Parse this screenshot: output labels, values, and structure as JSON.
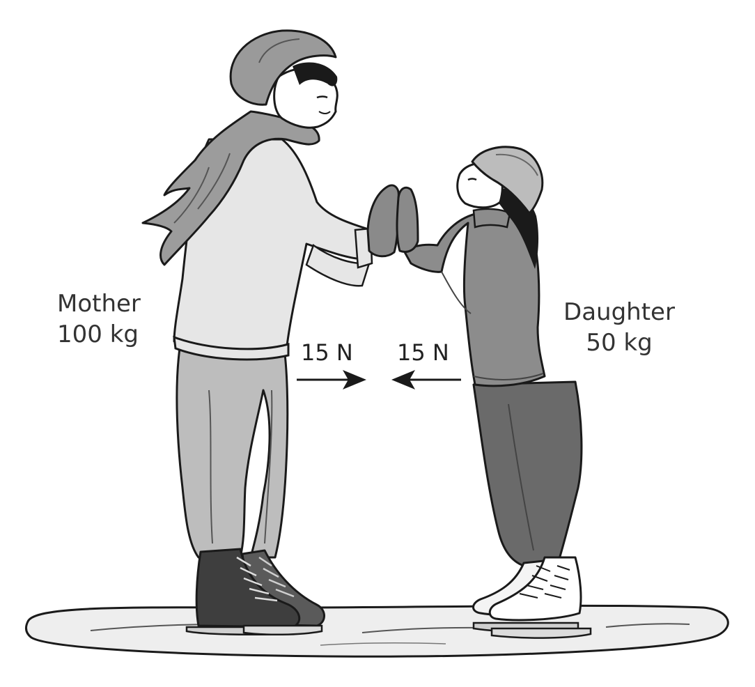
{
  "mother": {
    "name": "Mother",
    "mass": "100 kg"
  },
  "daughter": {
    "name": "Daughter",
    "mass": "50 kg"
  },
  "forces": {
    "on_daughter": "15 N",
    "on_mother": "15 N"
  },
  "colors": {
    "outline": "#1a1a1a",
    "mother_sweater": "#e6e6e6",
    "mother_pants": "#bdbdbd",
    "mother_hat": "#9a9a9a",
    "mother_skates": "#4a4a4a",
    "daughter_sweater": "#8c8c8c",
    "daughter_pants": "#6a6a6a",
    "daughter_hat": "#bcbcbc",
    "daughter_skates": "#f4f4f4",
    "ice": "#eeeeee"
  }
}
